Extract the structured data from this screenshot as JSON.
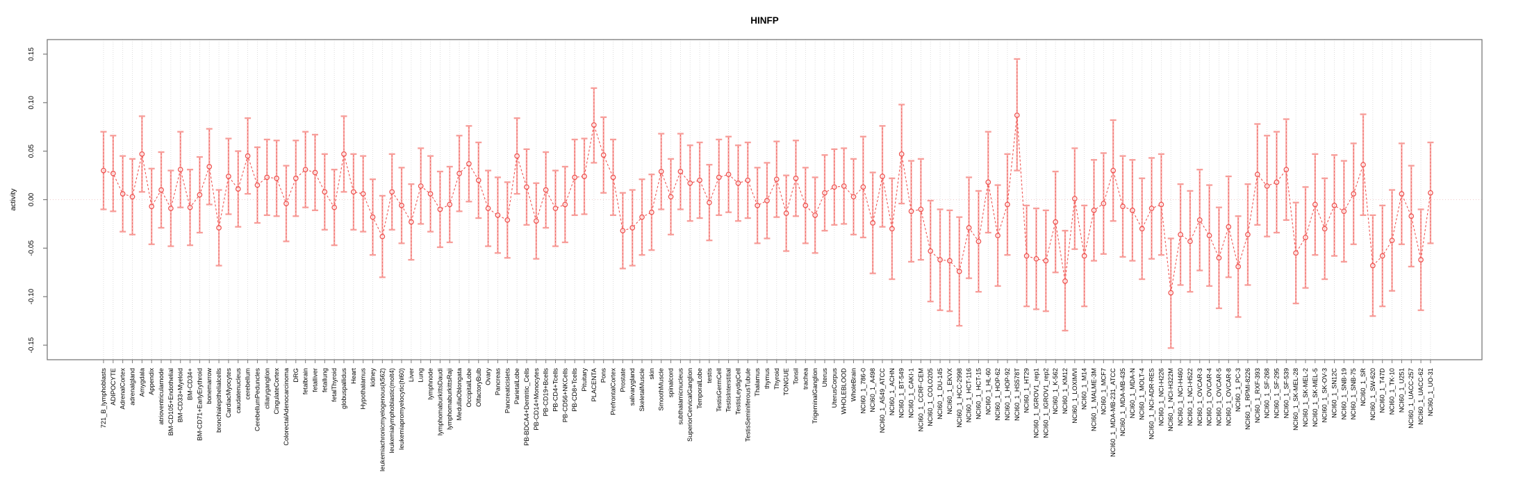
{
  "title": "HINFP",
  "y_axis_label": "activity",
  "chart_data": {
    "type": "line",
    "subtype": "points-with-error-bars",
    "title": "HINFP",
    "xlabel": "",
    "ylabel": "activity",
    "ylim": [
      -0.165,
      0.165
    ],
    "yticks": [
      0.15,
      0.1,
      0.05,
      0.0,
      -0.05,
      -0.1,
      -0.15
    ],
    "ytick_labels": [
      "0.15",
      "0.10",
      "0.05",
      "0.00",
      "-0.05",
      "-0.10",
      "-0.15"
    ],
    "grid": true,
    "zero_line": true,
    "legend_position": "none",
    "colors": {
      "series": "#ef5350",
      "error_bar": "#f79d99",
      "grid": "#d4d4d4",
      "zero_line": "#f0caca",
      "box": "#7a7a7a",
      "text": "#000000"
    },
    "categories": [
      "721_B_lymphoblasts",
      "ADIPOCYTE",
      "AdrenalCortex",
      "adrenalgland",
      "Amygdala",
      "Appendix",
      "atrioventricularnode",
      "BM-CD105+Endothelial",
      "BM-CD33+Myeloid",
      "BM-CD34+",
      "BM-CD71+EarlyErythroid",
      "bonemarrow",
      "bronchialepithelialcells",
      "CardiacMyocytes",
      "caudatenucleus",
      "cerebellum",
      "CerebellumPeduncles",
      "ciliaryganglion",
      "CingulateCortex",
      "ColorectalAdenocarcinoma",
      "DRG",
      "fetalbrain",
      "fetalliver",
      "fetallung",
      "fetalThyroid",
      "globuspallidus",
      "Heart",
      "Hypothalamus",
      "kidney",
      "leukemiachronicmyelogenous(k562)",
      "leukemialymphoblastic(molt4)",
      "leukemiapromyelocytic(hl60)",
      "Liver",
      "Lung",
      "lymphnode",
      "lymphomaburkittsDaudi",
      "lymphomaburkittsRaji",
      "MedullaOblongata",
      "OccipitalLobe",
      "OlfactoryBulb",
      "Ovary",
      "Pancreas",
      "Pancreaticislets",
      "ParietalLobe",
      "PB-BDCA4+Dentritic_Cells",
      "PB-CD14+Monocytes",
      "PB-CD19+Bcells",
      "PB-CD4+Tcells",
      "PB-CD56+NKCells",
      "PB-CD8+Tcells",
      "Pituitary",
      "PLACENTA",
      "Pons",
      "PrefrontalCortex",
      "Prostate",
      "salivarygland",
      "SkeletalMuscle",
      "skin",
      "SmoothMuscle",
      "spinalcord",
      "subthalamicnucleus",
      "SuperiorCervicalGanglion",
      "TemporalLobe",
      "testis",
      "TestisGermCell",
      "TestisInterstitial",
      "TestisLeydigCell",
      "TestisSeminiferousTubule",
      "Thalamus",
      "thymus",
      "Thyroid",
      "TONGUE",
      "Tonsil",
      "trachea",
      "TrigeminalGanglion",
      "Uterus",
      "UterusCorpus",
      "WHOLEBLOOD",
      "WholeBrain",
      "NCI60_1_786-0",
      "NCI60_1_A498",
      "NCI60_1_A549_ATCC",
      "NCI60_1_ACHN",
      "NCI60_1_BT-549",
      "NCI60_1_CAKI-1",
      "NCI60_1_CCRF-CEM",
      "NCI60_1_COLO205",
      "NCI60_1_DU-145",
      "NCI60_1_EKVX",
      "NCI60_1_HCC-2998",
      "NCI60_1_HCT-116",
      "NCI60_1_HCT-15",
      "NCI60_1_HL-60",
      "NCI60_1_HOP-62",
      "NCI60_1_HOP-92",
      "NCI60_1_HS578T",
      "NCI60_1_HT29",
      "NCI60_1_IGROV1_rep1",
      "NCI60_1_IGROV1_rep2",
      "NCI60_1_K-562",
      "NCI60_1_KM12",
      "NCI60_1_LOXIMVI",
      "NCI60_1_M14",
      "NCI60_1_MALME-3M",
      "NCI60_1_MCF7",
      "NCI60_1_MDA-MB-231_ATCC",
      "NCI60_1_MDA-MB-435",
      "NCI60_1_MDA-N",
      "NCI60_1_MOLT-4",
      "NCI60_1_NCI-ADR-RES",
      "NCI60_1_NCI-H226",
      "NCI60_1_NCI-H322M",
      "NCI60_1_NCI-H460",
      "NCI60_1_NCI-H522",
      "NCI60_1_OVCAR-3",
      "NCI60_1_OVCAR-4",
      "NCI60_1_OVCAR-5",
      "NCI60_1_OVCAR-8",
      "NCI60_1_PC-3",
      "NCI60_1_RPMI-8226",
      "NCI60_1_RXF-393",
      "NCI60_1_SF-268",
      "NCI60_1_SF-295",
      "NCI60_1_SF-539",
      "NCI60_1_SK-MEL-28",
      "NCI60_1_SK-MEL-2",
      "NCI60_1_SK-MEL-5",
      "NCI60_1_SK-OV-3",
      "NCI60_1_SN12C",
      "NCI60_1_SNB-19",
      "NCI60_1_SNB-75",
      "NCI60_1_SR",
      "NCI60_1_SW-620",
      "NCI60_1_T47D",
      "NCI60_1_TK-10",
      "NCI60_1_U251",
      "NCI60_1_UACC-257",
      "NCI60_1_UACC-62",
      "NCI60_1_UO-31"
    ],
    "values": [
      0.03,
      0.027,
      0.006,
      0.003,
      0.047,
      -0.007,
      0.01,
      -0.009,
      0.031,
      -0.008,
      0.005,
      0.034,
      -0.029,
      0.024,
      0.011,
      0.045,
      0.015,
      0.023,
      0.022,
      -0.004,
      0.022,
      0.031,
      0.028,
      0.008,
      -0.008,
      0.047,
      0.008,
      0.006,
      -0.018,
      -0.038,
      0.008,
      -0.006,
      -0.023,
      0.014,
      0.006,
      -0.01,
      -0.005,
      0.027,
      0.037,
      0.02,
      -0.009,
      -0.016,
      -0.021,
      0.045,
      0.013,
      -0.022,
      0.01,
      -0.009,
      -0.005,
      0.023,
      0.024,
      0.077,
      0.046,
      0.023,
      -0.032,
      -0.029,
      -0.018,
      -0.013,
      0.029,
      0.003,
      0.029,
      0.017,
      0.02,
      -0.003,
      0.023,
      0.026,
      0.017,
      0.02,
      -0.006,
      -0.001,
      0.021,
      -0.014,
      0.022,
      -0.006,
      -0.016,
      0.007,
      0.013,
      0.014,
      0.003,
      0.013,
      -0.024,
      0.024,
      -0.03,
      0.047,
      -0.012,
      -0.01,
      -0.053,
      -0.062,
      -0.063,
      -0.074,
      -0.029,
      -0.043,
      0.018,
      -0.037,
      -0.005,
      0.087,
      -0.058,
      -0.061,
      -0.063,
      -0.023,
      -0.084,
      0.001,
      -0.058,
      -0.011,
      -0.004,
      0.03,
      -0.007,
      -0.011,
      -0.03,
      -0.009,
      -0.005,
      -0.096,
      -0.036,
      -0.043,
      -0.021,
      -0.037,
      -0.06,
      -0.028,
      -0.069,
      -0.036,
      0.026,
      0.014,
      0.018,
      0.031,
      -0.055,
      -0.039,
      -0.005,
      -0.03,
      -0.006,
      -0.012,
      0.006,
      0.036,
      -0.068,
      -0.058,
      -0.042,
      0.006,
      -0.017,
      -0.062,
      0.007
    ],
    "ci_low": [
      -0.01,
      -0.012,
      -0.033,
      -0.036,
      0.008,
      -0.046,
      -0.029,
      -0.048,
      -0.008,
      -0.047,
      -0.034,
      -0.005,
      -0.068,
      -0.015,
      -0.028,
      0.006,
      -0.024,
      -0.016,
      -0.017,
      -0.043,
      -0.017,
      -0.008,
      -0.011,
      -0.031,
      -0.047,
      0.008,
      -0.031,
      -0.033,
      -0.057,
      -0.08,
      -0.031,
      -0.045,
      -0.062,
      -0.025,
      -0.033,
      -0.049,
      -0.044,
      -0.012,
      -0.002,
      -0.019,
      -0.048,
      -0.055,
      -0.06,
      0.006,
      -0.026,
      -0.061,
      -0.029,
      -0.048,
      -0.044,
      -0.016,
      -0.015,
      0.038,
      0.007,
      -0.016,
      -0.071,
      -0.068,
      -0.057,
      -0.052,
      -0.01,
      -0.036,
      -0.01,
      -0.022,
      -0.019,
      -0.042,
      -0.016,
      -0.013,
      -0.022,
      -0.019,
      -0.045,
      -0.04,
      -0.018,
      -0.053,
      -0.017,
      -0.045,
      -0.055,
      -0.032,
      -0.026,
      -0.025,
      -0.036,
      -0.039,
      -0.076,
      -0.028,
      -0.082,
      -0.004,
      -0.064,
      -0.062,
      -0.105,
      -0.114,
      -0.115,
      -0.13,
      -0.081,
      -0.095,
      -0.034,
      -0.089,
      -0.057,
      0.03,
      -0.11,
      -0.113,
      -0.115,
      -0.075,
      -0.135,
      -0.051,
      -0.11,
      -0.063,
      -0.056,
      -0.022,
      -0.059,
      -0.063,
      -0.082,
      -0.061,
      -0.057,
      -0.153,
      -0.088,
      -0.095,
      -0.073,
      -0.089,
      -0.112,
      -0.08,
      -0.121,
      -0.088,
      -0.026,
      -0.038,
      -0.034,
      -0.021,
      -0.107,
      -0.091,
      -0.057,
      -0.082,
      -0.058,
      -0.064,
      -0.046,
      -0.016,
      -0.12,
      -0.11,
      -0.094,
      -0.046,
      -0.069,
      -0.114,
      -0.045
    ],
    "ci_high": [
      0.07,
      0.066,
      0.045,
      0.042,
      0.086,
      0.032,
      0.049,
      0.03,
      0.07,
      0.031,
      0.044,
      0.073,
      0.01,
      0.063,
      0.05,
      0.084,
      0.054,
      0.062,
      0.061,
      0.035,
      0.061,
      0.07,
      0.067,
      0.047,
      0.031,
      0.086,
      0.047,
      0.045,
      0.021,
      0.004,
      0.047,
      0.033,
      0.016,
      0.053,
      0.045,
      0.029,
      0.034,
      0.066,
      0.076,
      0.059,
      0.03,
      0.023,
      0.018,
      0.084,
      0.052,
      0.017,
      0.049,
      0.03,
      0.034,
      0.062,
      0.063,
      0.115,
      0.085,
      0.062,
      0.007,
      0.01,
      0.021,
      0.026,
      0.068,
      0.042,
      0.068,
      0.056,
      0.059,
      0.036,
      0.062,
      0.065,
      0.056,
      0.059,
      0.033,
      0.038,
      0.06,
      0.025,
      0.061,
      0.033,
      0.023,
      0.046,
      0.052,
      0.053,
      0.042,
      0.065,
      0.028,
      0.076,
      0.022,
      0.098,
      0.04,
      0.042,
      -0.001,
      -0.01,
      -0.011,
      -0.018,
      0.023,
      0.009,
      0.07,
      0.015,
      0.047,
      0.145,
      -0.006,
      -0.009,
      -0.011,
      0.029,
      -0.032,
      0.053,
      -0.006,
      0.041,
      0.048,
      0.082,
      0.045,
      0.041,
      0.022,
      0.043,
      0.047,
      -0.04,
      0.016,
      0.009,
      0.031,
      0.015,
      -0.008,
      0.024,
      -0.017,
      0.016,
      0.078,
      0.066,
      0.07,
      0.083,
      -0.003,
      0.013,
      0.047,
      0.022,
      0.046,
      0.04,
      0.058,
      0.088,
      -0.016,
      -0.006,
      0.01,
      0.058,
      0.035,
      -0.01,
      0.059
    ]
  }
}
